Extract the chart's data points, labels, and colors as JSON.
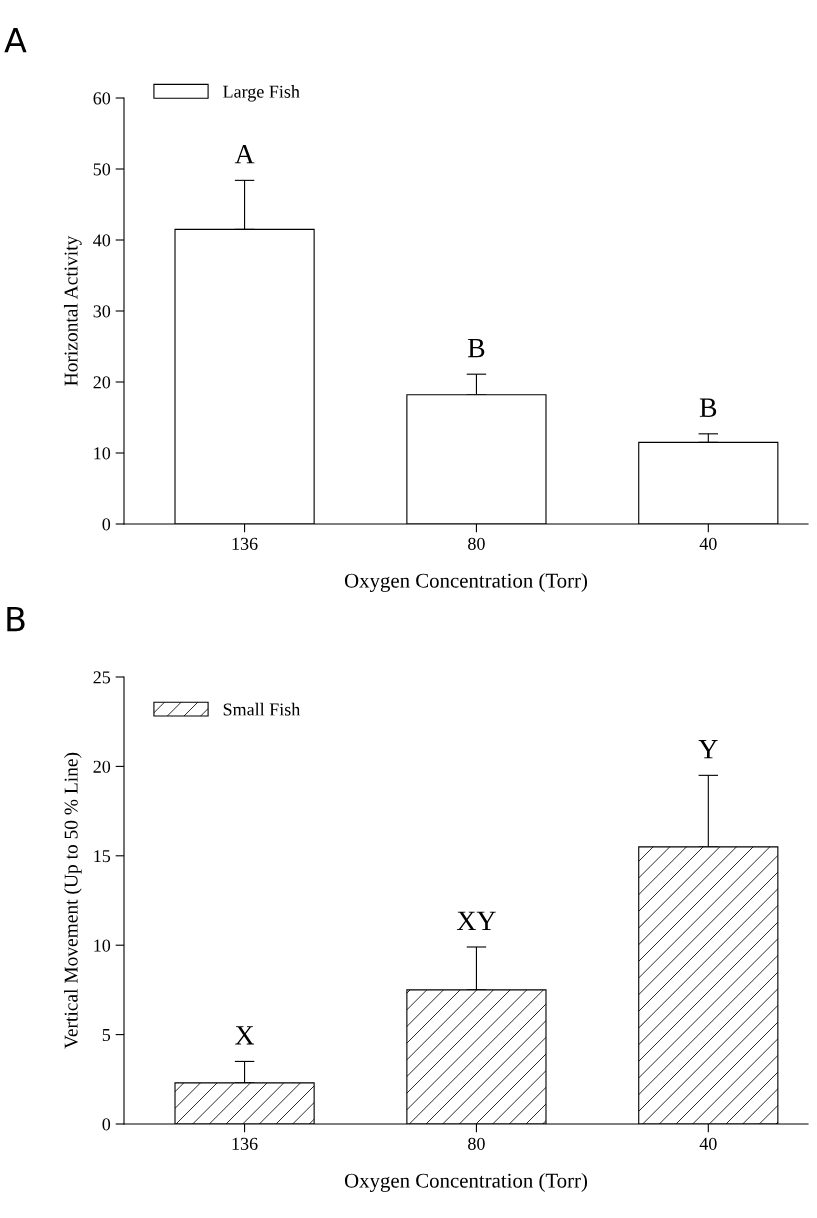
{
  "chart_data": [
    {
      "type": "bar",
      "xlabel": "Oxygen Concentration (Torr)",
      "ylabel": "Horizontal Activity",
      "categories": [
        "136",
        "80",
        "40"
      ],
      "series": [
        {
          "name": "Large Fish",
          "color": "#ffffff",
          "values": [
            41.5,
            18.2,
            11.5
          ],
          "errors": [
            [
              41.5,
              48.4
            ],
            [
              18.2,
              21.1
            ],
            [
              11.5,
              12.7
            ]
          ]
        }
      ],
      "ylim": [
        0,
        60
      ],
      "yticks": [
        0,
        10,
        20,
        30,
        40,
        50,
        60
      ],
      "legend": "top left",
      "grid": false,
      "annotations": [
        "A",
        {
          "text": "A",
          "x": "136",
          "y": 48.4
        },
        {
          "text": "B",
          "x": "80",
          "y": 21.1
        },
        {
          "text": "B",
          "x": "40",
          "y": 12.7
        }
      ]
    },
    {
      "type": "bar",
      "xlabel": "Oxygen Concentration (Torr)",
      "ylabel": "Vertical Movement (Up to 50 % Line)",
      "categories": [
        "136",
        "80",
        "40"
      ],
      "series": [
        {
          "name": "Small Fish",
          "color": "#000000",
          "values": [
            2.3,
            7.5,
            15.5
          ],
          "errors": [
            [
              2.3,
              3.5
            ],
            [
              7.5,
              9.9
            ],
            [
              15.5,
              19.5
            ]
          ]
        }
      ],
      "ylim": [
        0,
        25
      ],
      "yticks": [
        0,
        5,
        10,
        15,
        20,
        25
      ],
      "legend": "top left",
      "grid": false,
      "annotations": [
        "B",
        {
          "text": "X",
          "x": "136",
          "y": 3.5
        },
        {
          "text": "XY",
          "x": "80",
          "y": 9.9
        },
        {
          "text": "Y",
          "x": "40",
          "y": 19.5
        }
      ]
    }
  ]
}
